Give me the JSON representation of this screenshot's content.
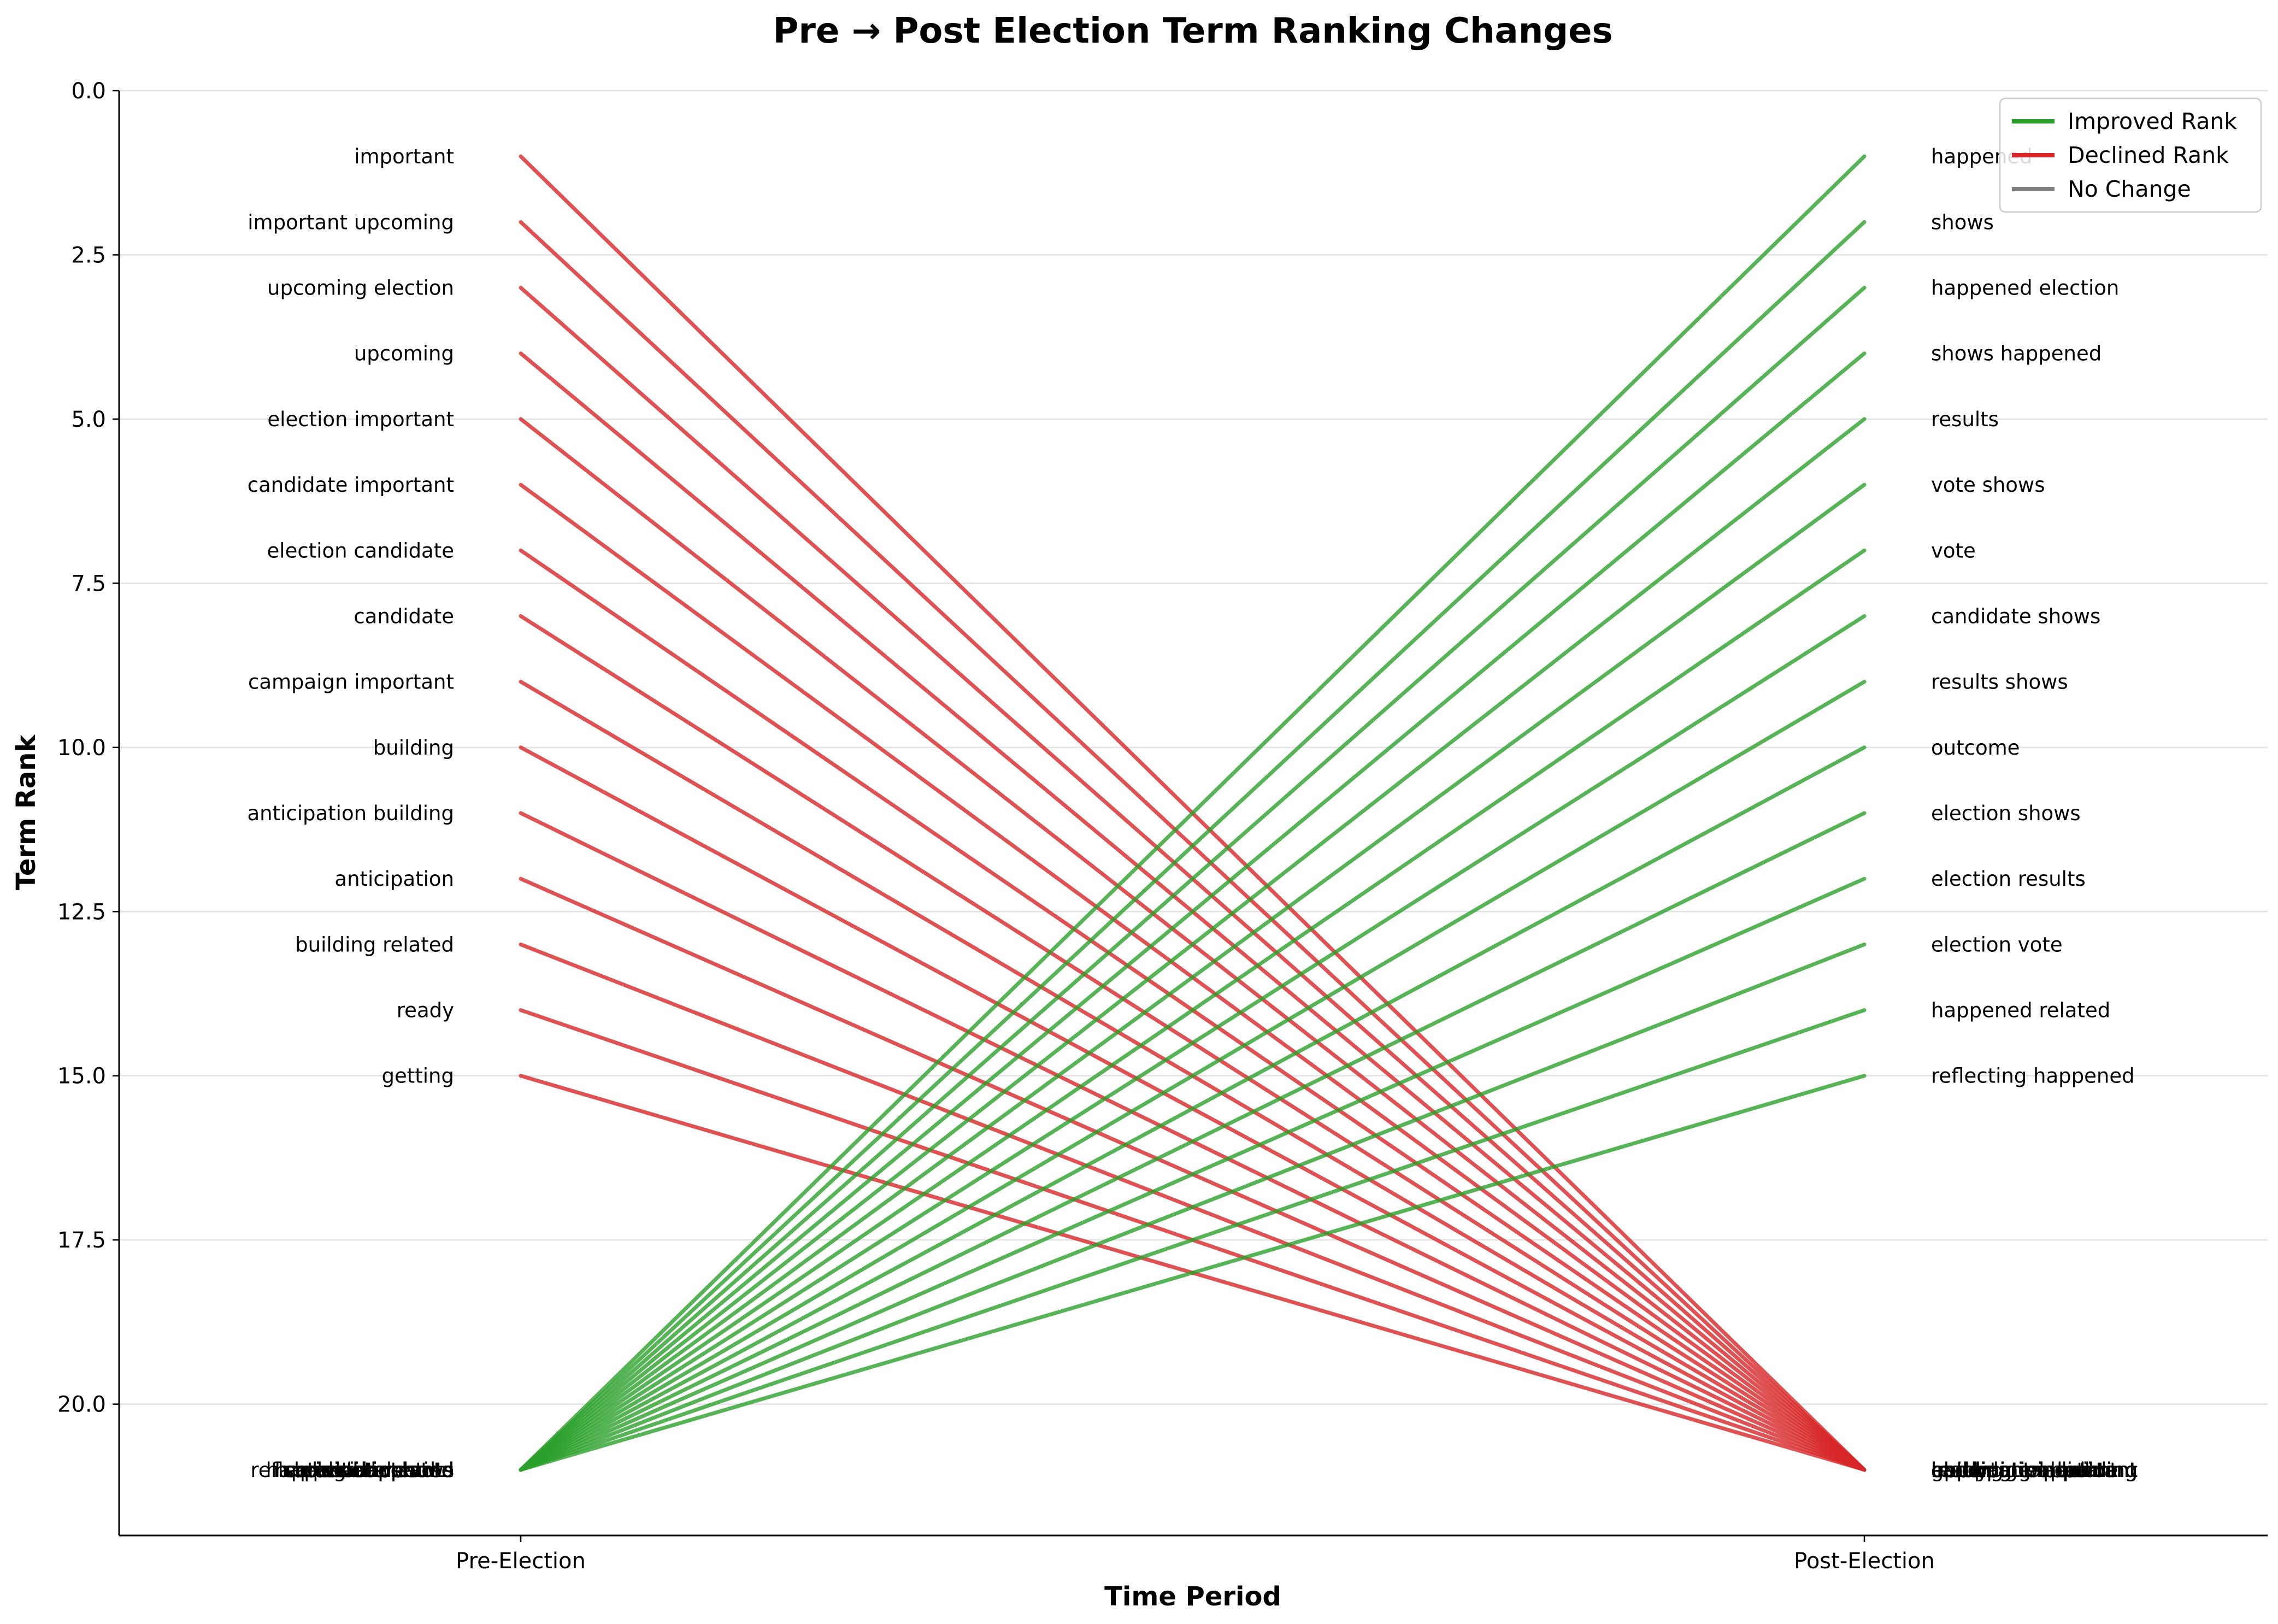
{
  "chart_data": {
    "type": "line",
    "title": "Pre → Post Election Term Ranking Changes",
    "xlabel": "Time Period",
    "ylabel": "Term Rank",
    "x_categories": [
      "Pre-Election",
      "Post-Election"
    ],
    "ylim": [
      22,
      0
    ],
    "y_inverted": true,
    "y_ticks": [
      0.0,
      2.5,
      5.0,
      7.5,
      10.0,
      12.5,
      15.0,
      17.5,
      20.0
    ],
    "y_tick_labels": [
      "0.0",
      "2.5",
      "5.0",
      "7.5",
      "10.0",
      "12.5",
      "15.0",
      "17.5",
      "20.0"
    ],
    "grid": "horizontal",
    "legend_position": "top-right",
    "colors": {
      "improved": "#2ca02c",
      "declined": "#d62728",
      "no_change": "#7f7f7f"
    },
    "legend": [
      {
        "key": "improved",
        "label": "Improved Rank"
      },
      {
        "key": "declined",
        "label": "Declined Rank"
      },
      {
        "key": "no_change",
        "label": "No Change"
      }
    ],
    "pre_labels": [
      {
        "term": "important",
        "rank": 1
      },
      {
        "term": "important upcoming",
        "rank": 2
      },
      {
        "term": "upcoming election",
        "rank": 3
      },
      {
        "term": "upcoming",
        "rank": 4
      },
      {
        "term": "election important",
        "rank": 5
      },
      {
        "term": "candidate important",
        "rank": 6
      },
      {
        "term": "election candidate",
        "rank": 7
      },
      {
        "term": "candidate",
        "rank": 8
      },
      {
        "term": "campaign important",
        "rank": 9
      },
      {
        "term": "building",
        "rank": 10
      },
      {
        "term": "anticipation building",
        "rank": 11
      },
      {
        "term": "anticipation",
        "rank": 12
      },
      {
        "term": "building related",
        "rank": 13
      },
      {
        "term": "ready",
        "rank": 14
      },
      {
        "term": "getting",
        "rank": 15
      },
      {
        "term": "happened",
        "rank": 21
      },
      {
        "term": "shows",
        "rank": 21
      },
      {
        "term": "happened election",
        "rank": 21
      },
      {
        "term": "shows happened",
        "rank": 21
      },
      {
        "term": "results",
        "rank": 21
      },
      {
        "term": "vote shows",
        "rank": 21
      },
      {
        "term": "vote",
        "rank": 21
      },
      {
        "term": "candidate shows",
        "rank": 21
      },
      {
        "term": "results shows",
        "rank": 21
      },
      {
        "term": "outcome",
        "rank": 21
      },
      {
        "term": "election shows",
        "rank": 21
      },
      {
        "term": "election results",
        "rank": 21
      },
      {
        "term": "election vote",
        "rank": 21
      },
      {
        "term": "happened related",
        "rank": 21
      },
      {
        "term": "reflecting happened",
        "rank": 21
      }
    ],
    "post_labels": [
      {
        "term": "happened",
        "rank": 1
      },
      {
        "term": "shows",
        "rank": 2
      },
      {
        "term": "happened election",
        "rank": 3
      },
      {
        "term": "shows happened",
        "rank": 4
      },
      {
        "term": "results",
        "rank": 5
      },
      {
        "term": "vote shows",
        "rank": 6
      },
      {
        "term": "vote",
        "rank": 7
      },
      {
        "term": "candidate shows",
        "rank": 8
      },
      {
        "term": "results shows",
        "rank": 9
      },
      {
        "term": "outcome",
        "rank": 10
      },
      {
        "term": "election shows",
        "rank": 11
      },
      {
        "term": "election results",
        "rank": 12
      },
      {
        "term": "election vote",
        "rank": 13
      },
      {
        "term": "happened related",
        "rank": 14
      },
      {
        "term": "reflecting happened",
        "rank": 15
      },
      {
        "term": "important",
        "rank": 21
      },
      {
        "term": "important upcoming",
        "rank": 21
      },
      {
        "term": "upcoming election",
        "rank": 21
      },
      {
        "term": "upcoming",
        "rank": 21
      },
      {
        "term": "election important",
        "rank": 21
      },
      {
        "term": "candidate important",
        "rank": 21
      },
      {
        "term": "election candidate",
        "rank": 21
      },
      {
        "term": "candidate",
        "rank": 21
      },
      {
        "term": "campaign important",
        "rank": 21
      },
      {
        "term": "building",
        "rank": 21
      },
      {
        "term": "anticipation building",
        "rank": 21
      },
      {
        "term": "anticipation",
        "rank": 21
      },
      {
        "term": "building related",
        "rank": 21
      },
      {
        "term": "ready",
        "rank": 21
      },
      {
        "term": "getting",
        "rank": 21
      }
    ],
    "series": [
      {
        "term": "important",
        "pre": 1,
        "post": 21,
        "change": "declined"
      },
      {
        "term": "important upcoming",
        "pre": 2,
        "post": 21,
        "change": "declined"
      },
      {
        "term": "upcoming election",
        "pre": 3,
        "post": 21,
        "change": "declined"
      },
      {
        "term": "upcoming",
        "pre": 4,
        "post": 21,
        "change": "declined"
      },
      {
        "term": "election important",
        "pre": 5,
        "post": 21,
        "change": "declined"
      },
      {
        "term": "candidate important",
        "pre": 6,
        "post": 21,
        "change": "declined"
      },
      {
        "term": "election candidate",
        "pre": 7,
        "post": 21,
        "change": "declined"
      },
      {
        "term": "candidate",
        "pre": 8,
        "post": 21,
        "change": "declined"
      },
      {
        "term": "campaign important",
        "pre": 9,
        "post": 21,
        "change": "declined"
      },
      {
        "term": "building",
        "pre": 10,
        "post": 21,
        "change": "declined"
      },
      {
        "term": "anticipation building",
        "pre": 11,
        "post": 21,
        "change": "declined"
      },
      {
        "term": "anticipation",
        "pre": 12,
        "post": 21,
        "change": "declined"
      },
      {
        "term": "building related",
        "pre": 13,
        "post": 21,
        "change": "declined"
      },
      {
        "term": "ready",
        "pre": 14,
        "post": 21,
        "change": "declined"
      },
      {
        "term": "getting",
        "pre": 15,
        "post": 21,
        "change": "declined"
      },
      {
        "term": "happened",
        "pre": 21,
        "post": 1,
        "change": "improved"
      },
      {
        "term": "shows",
        "pre": 21,
        "post": 2,
        "change": "improved"
      },
      {
        "term": "happened election",
        "pre": 21,
        "post": 3,
        "change": "improved"
      },
      {
        "term": "shows happened",
        "pre": 21,
        "post": 4,
        "change": "improved"
      },
      {
        "term": "results",
        "pre": 21,
        "post": 5,
        "change": "improved"
      },
      {
        "term": "vote shows",
        "pre": 21,
        "post": 6,
        "change": "improved"
      },
      {
        "term": "vote",
        "pre": 21,
        "post": 7,
        "change": "improved"
      },
      {
        "term": "candidate shows",
        "pre": 21,
        "post": 8,
        "change": "improved"
      },
      {
        "term": "results shows",
        "pre": 21,
        "post": 9,
        "change": "improved"
      },
      {
        "term": "outcome",
        "pre": 21,
        "post": 10,
        "change": "improved"
      },
      {
        "term": "election shows",
        "pre": 21,
        "post": 11,
        "change": "improved"
      },
      {
        "term": "election results",
        "pre": 21,
        "post": 12,
        "change": "improved"
      },
      {
        "term": "election vote",
        "pre": 21,
        "post": 13,
        "change": "improved"
      },
      {
        "term": "happened related",
        "pre": 21,
        "post": 14,
        "change": "improved"
      },
      {
        "term": "reflecting happened",
        "pre": 21,
        "post": 15,
        "change": "improved"
      }
    ]
  }
}
